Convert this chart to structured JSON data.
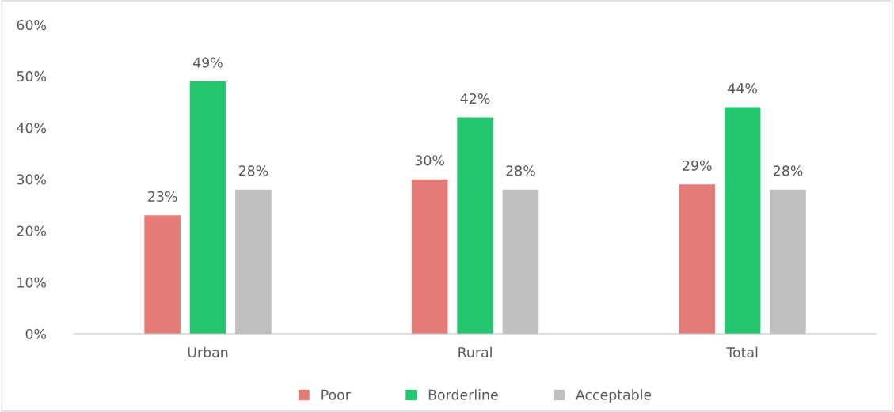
{
  "chart_data": {
    "type": "bar",
    "categories": [
      "Urban",
      "Rural",
      "Total"
    ],
    "series": [
      {
        "name": "Poor",
        "color": "#e57b76",
        "values": [
          23,
          30,
          29
        ],
        "value_labels": [
          "23%",
          "30%",
          "29%"
        ]
      },
      {
        "name": "Borderline",
        "color": "#22c76f",
        "values": [
          49,
          42,
          44
        ],
        "value_labels": [
          "49%",
          "42%",
          "44%"
        ]
      },
      {
        "name": "Acceptable",
        "color": "#bfbfbf",
        "values": [
          28,
          28,
          28
        ],
        "value_labels": [
          "28%",
          "28%",
          "28%"
        ]
      }
    ],
    "ylim": [
      0,
      60
    ],
    "yticks": [
      {
        "value": 0,
        "label": "0%"
      },
      {
        "value": 10,
        "label": "10%"
      },
      {
        "value": 20,
        "label": "20%"
      },
      {
        "value": 30,
        "label": "30%"
      },
      {
        "value": 40,
        "label": "40%"
      },
      {
        "value": 50,
        "label": "50%"
      },
      {
        "value": 60,
        "label": "60%"
      }
    ],
    "grid": false,
    "legend": "bottom"
  }
}
